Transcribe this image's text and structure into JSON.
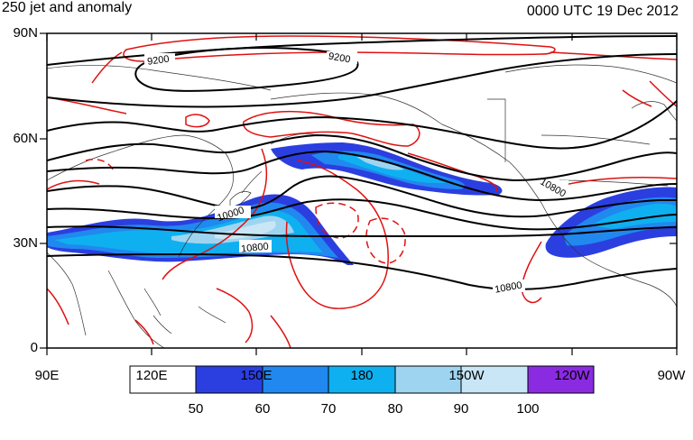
{
  "header": {
    "title_left": "250 jet and anomaly",
    "title_right": "0000 UTC 19 Dec 2012"
  },
  "axes": {
    "lat_labels": [
      "90N",
      "60N",
      "30N",
      "0"
    ],
    "lon_labels": [
      "90E",
      "120E",
      "150E",
      "180",
      "150W",
      "120W",
      "90W"
    ]
  },
  "contour_labels": [
    "9200",
    "9200",
    "10000",
    "10800",
    "10800",
    "10800"
  ],
  "colorbar": {
    "colors": [
      "#ffffff",
      "#2b3fe0",
      "#2188ef",
      "#0fb0f0",
      "#9ed4f0",
      "#c8e6f5",
      "#8a2be2"
    ],
    "labels": [
      "50",
      "60",
      "70",
      "80",
      "90",
      "100"
    ]
  }
}
